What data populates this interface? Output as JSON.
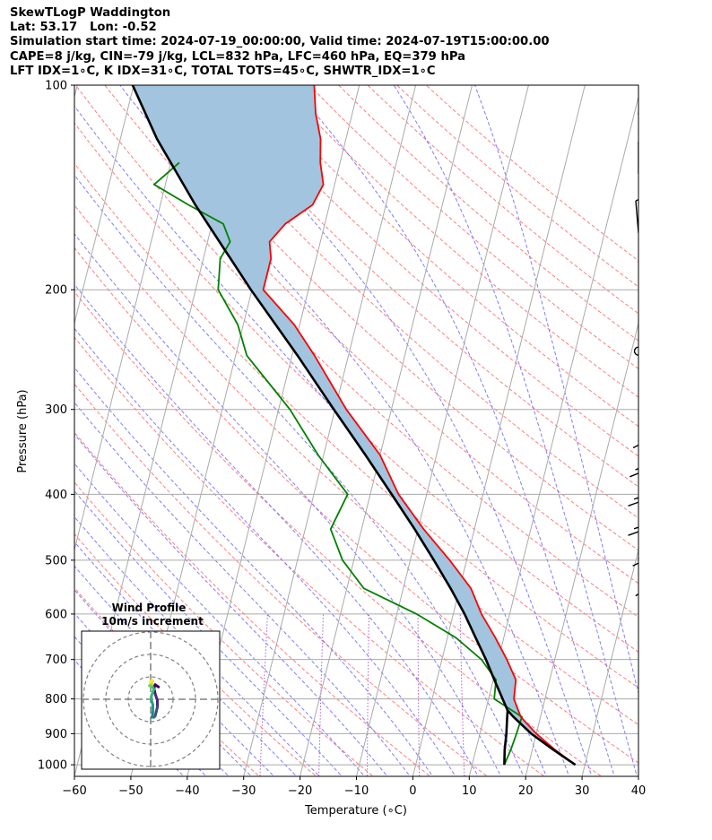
{
  "header": {
    "line1": "SkewTLogP Waddington",
    "line2": "Lat: 53.17   Lon: -0.52",
    "line3": "Simulation start time: 2024-07-19_00:00:00, Valid time: 2024-07-19T15:00:00.00",
    "line4": "CAPE=8 j/kg, CIN=-79 j/kg, LCL=832 hPa, LFC=460 hPa, EQ=379 hPa",
    "line5": "LFT IDX=1∘C, K IDX=31∘C, TOTAL TOTS=45∘C, SHWTR_IDX=1∘C"
  },
  "chart_data": [
    {
      "type": "line",
      "title": "",
      "xlabel": "Temperature (∘C)",
      "ylabel": "Pressure (hPa)",
      "xlim": [
        -60,
        40
      ],
      "ylim": [
        1040,
        100
      ],
      "y_scale": "log",
      "x_ticks": [
        -60,
        -50,
        -40,
        -30,
        -20,
        -10,
        0,
        10,
        20,
        30,
        40
      ],
      "y_ticks": [
        1000,
        900,
        800,
        700,
        600,
        500,
        400,
        300,
        200,
        100
      ],
      "skew": 30,
      "grid": true,
      "colors": {
        "temperature": "#ff0000",
        "dewpoint": "#008000",
        "parcel": "#000000",
        "cape_fill": "#a2c4de",
        "dry_adiabats": "#ff6666",
        "moist_adiabats": "#6666ff",
        "mixing_ratio": "#9b30c8",
        "isotherms": "#aaaaaa"
      },
      "series": [
        {
          "key": "temperature",
          "pressure": [
            1000,
            950,
            900,
            850,
            800,
            750,
            700,
            650,
            600,
            550,
            500,
            450,
            400,
            350,
            300,
            250,
            225,
            200,
            180,
            170,
            160,
            150,
            140,
            130,
            120,
            110,
            100
          ],
          "values": [
            28.3,
            24.0,
            20.0,
            16.5,
            14.5,
            14.0,
            11.5,
            8.5,
            5.0,
            2.0,
            -3.0,
            -9.0,
            -15.0,
            -20.0,
            -28.0,
            -36.0,
            -41.0,
            -48.0,
            -48.0,
            -49.0,
            -47.0,
            -43.0,
            -42.0,
            -43.5,
            -44.5,
            -46.5,
            -48.0
          ]
        },
        {
          "key": "dewpoint",
          "pressure": [
            1000,
            950,
            900,
            850,
            800,
            750,
            700,
            650,
            600,
            550,
            500,
            450,
            400,
            350,
            300,
            250,
            225,
            200,
            180,
            170,
            160,
            150,
            140,
            130
          ],
          "values": [
            15.7,
            16.2,
            16.5,
            16.7,
            11.0,
            10.5,
            7.0,
            1.5,
            -6.5,
            -17.0,
            -22.0,
            -25.5,
            -24.0,
            -31.0,
            -38.0,
            -48.0,
            -51.0,
            -56.0,
            -57.0,
            -56.0,
            -58.0,
            -65.0,
            -72.0,
            -68.5
          ]
        },
        {
          "key": "parcel",
          "pressure": [
            1000,
            950,
            900,
            850,
            832,
            800,
            750,
            700,
            650,
            600,
            550,
            500,
            450,
            400,
            350,
            300,
            250,
            200,
            150,
            120,
            100
          ],
          "values": [
            28.3,
            23.7,
            19.1,
            15.2,
            13.9,
            12.5,
            10.2,
            7.8,
            5.0,
            2.0,
            -1.6,
            -5.8,
            -10.6,
            -16.2,
            -22.6,
            -30.2,
            -39.0,
            -50.2,
            -63.8,
            -73.5,
            -80.2
          ]
        },
        {
          "key": "parcel_dewpoint",
          "pressure": [
            1000,
            950,
            900,
            850,
            832
          ],
          "values": [
            15.7,
            15.1,
            14.7,
            14.1,
            13.9
          ]
        }
      ]
    },
    {
      "type": "hodograph",
      "title": "Wind Profile",
      "subtitle": "10m/s increment",
      "rings_ms": [
        10,
        20,
        30
      ],
      "u_ms": [
        3.5,
        2.0,
        1.5,
        2.0,
        3.0,
        3.0,
        2.5,
        2.0,
        1.5,
        0.5,
        0.5,
        0.8,
        1.0,
        1.0,
        0.2,
        0.5,
        1.5,
        0.5,
        -0.5,
        0.5,
        0.0,
        1.0,
        0.5,
        -0.2
      ],
      "v_ms": [
        5.5,
        6.5,
        5.0,
        2.5,
        -0.5,
        -3.5,
        -5.5,
        -7.5,
        -8.0,
        -8.0,
        -8.0,
        -7.5,
        -5.0,
        -2.5,
        0.0,
        2.0,
        4.5,
        6.0,
        6.0,
        7.0,
        7.5,
        8.0,
        8.5,
        7.5
      ]
    }
  ]
}
